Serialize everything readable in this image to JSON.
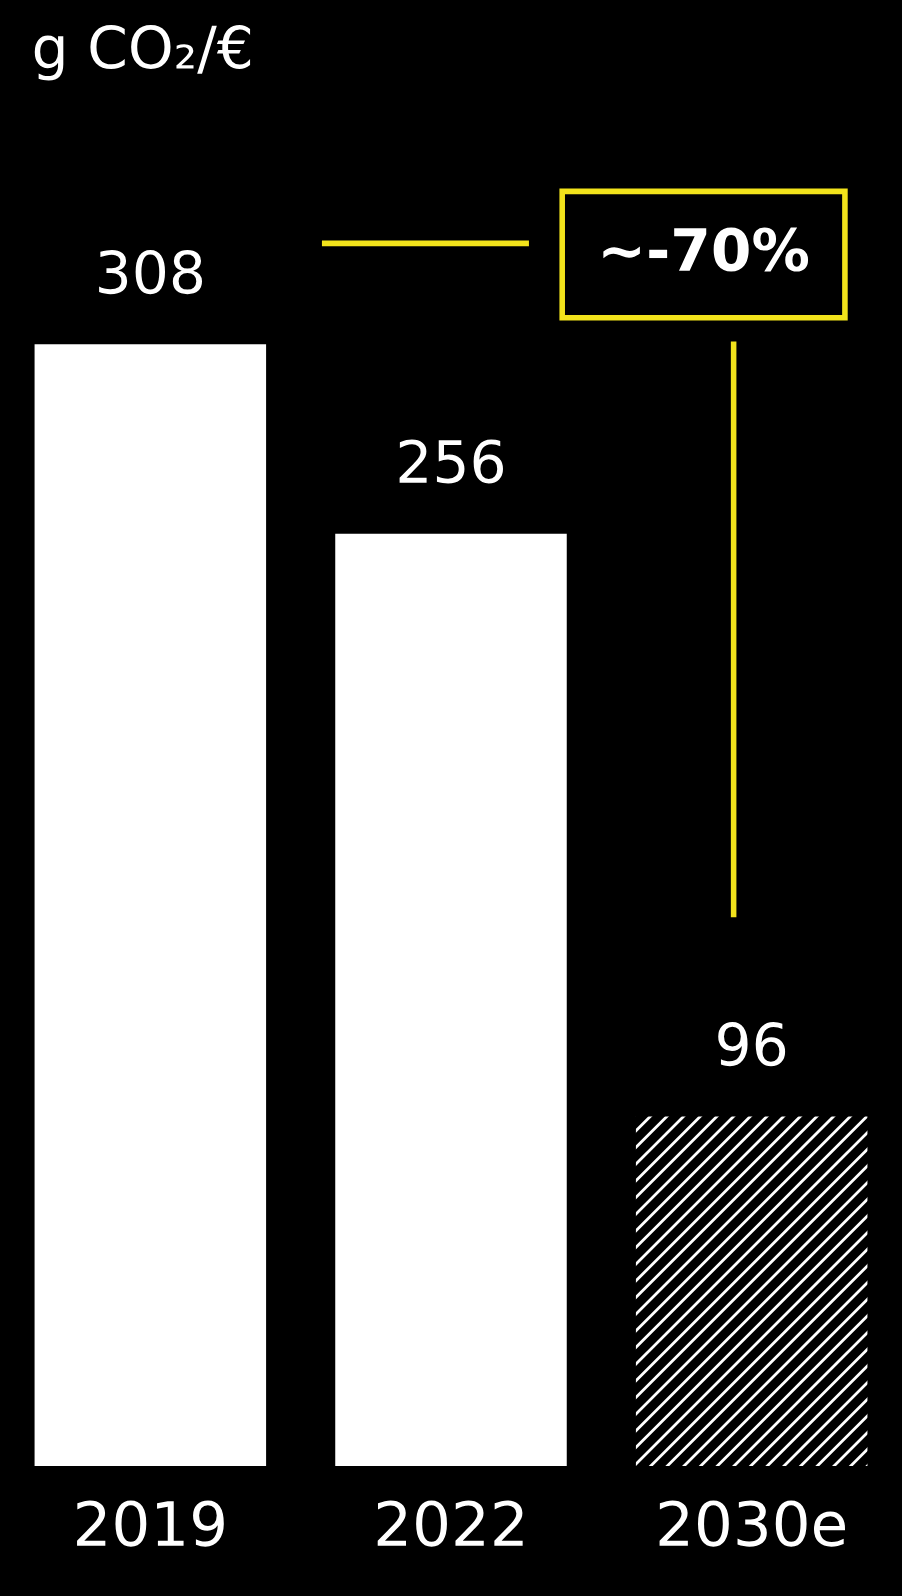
{
  "chart_data": {
    "type": "bar",
    "title": "g CO₂/€",
    "categories": [
      "2019",
      "2022",
      "2030e"
    ],
    "values": [
      308,
      256,
      96
    ],
    "colors": [
      "#ffffff",
      "#ffffff",
      "#ffffff"
    ],
    "data_labels": true,
    "annotations": [
      "~-70%"
    ],
    "grid": false,
    "legend": false
  }
}
